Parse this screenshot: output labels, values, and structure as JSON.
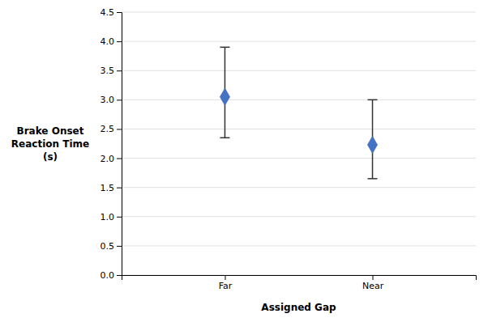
{
  "chart_data": {
    "type": "errorbar",
    "categories": [
      "Far",
      "Near"
    ],
    "values": [
      3.05,
      2.23
    ],
    "errors_upper": [
      0.85,
      0.77
    ],
    "errors_lower": [
      0.7,
      0.58
    ],
    "color": "#4472C4",
    "marker": "diamond",
    "xlabel": "Assigned Gap",
    "ylabel": [
      "Brake Onset",
      "Reaction Time",
      "(s)"
    ],
    "ylim": [
      0.0,
      4.5
    ],
    "yticks": [
      {
        "value": 0.0,
        "label": "0.0"
      },
      0.5,
      {
        "value": 1.0,
        "label": "1.0"
      },
      1.5,
      {
        "value": 2.0,
        "label": "2.0"
      },
      2.5,
      {
        "value": 3.0,
        "label": "3.0"
      },
      3.5,
      {
        "value": 4.0,
        "label": "4.0"
      },
      4.5
    ],
    "grid": true
  }
}
